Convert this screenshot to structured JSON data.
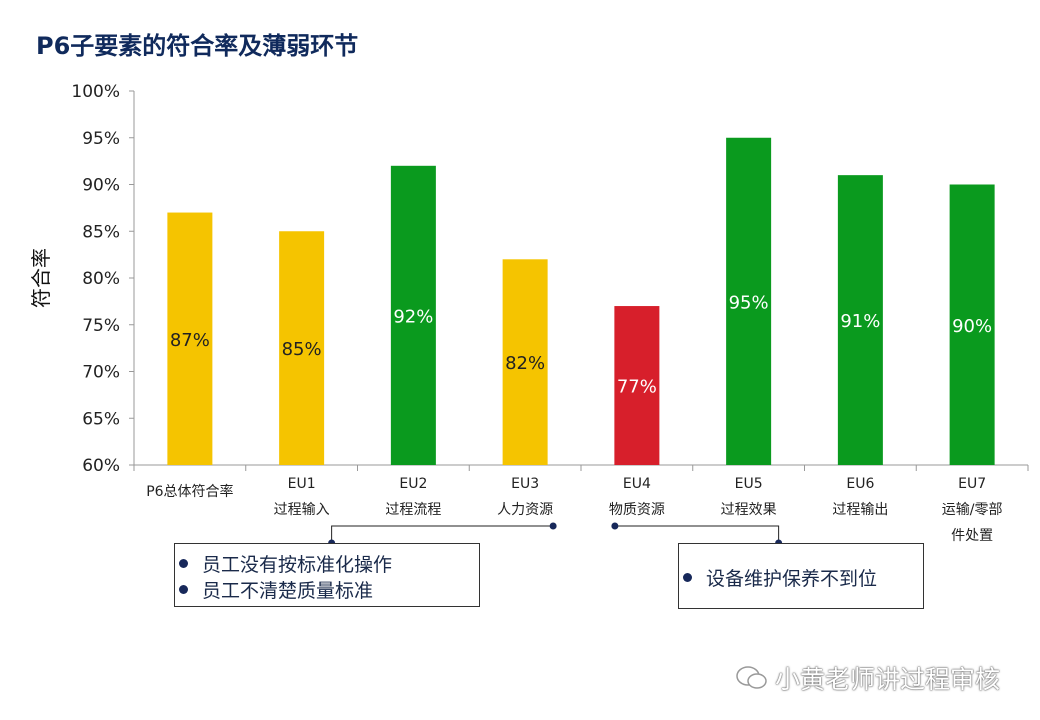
{
  "title": "P6子要素的符合率及薄弱环节",
  "chart_data": {
    "type": "bar",
    "ylabel": "符合率",
    "ylim": [
      60,
      100
    ],
    "yticks": [
      "60%",
      "65%",
      "70%",
      "75%",
      "80%",
      "85%",
      "90%",
      "95%",
      "100%"
    ],
    "categories": [
      [
        "P6总体符合率"
      ],
      [
        "EU1",
        "过程输入"
      ],
      [
        "EU2",
        "过程流程"
      ],
      [
        "EU3",
        "人力资源"
      ],
      [
        "EU4",
        "物质资源"
      ],
      [
        "EU5",
        "过程效果"
      ],
      [
        "EU6",
        "过程输出"
      ],
      [
        "EU7",
        "运输/零部",
        "件处置"
      ]
    ],
    "values": [
      87,
      85,
      92,
      82,
      77,
      95,
      91,
      90
    ],
    "data_labels": [
      "87%",
      "85%",
      "92%",
      "82%",
      "77%",
      "95%",
      "91%",
      "90%"
    ],
    "colors": [
      "#f5c400",
      "#f5c400",
      "#0a9a1e",
      "#f5c400",
      "#d71f2b",
      "#0a9a1e",
      "#0a9a1e",
      "#0a9a1e"
    ],
    "grid": false
  },
  "callouts": [
    {
      "points_to": [
        "EU1",
        "EU3"
      ],
      "items": [
        "员工没有按标准化操作",
        "员工不清楚质量标准"
      ]
    },
    {
      "points_to": [
        "EU4",
        "EU5"
      ],
      "items": [
        "设备维护保养不到位"
      ]
    }
  ],
  "watermark": "小黄老师讲过程审核"
}
